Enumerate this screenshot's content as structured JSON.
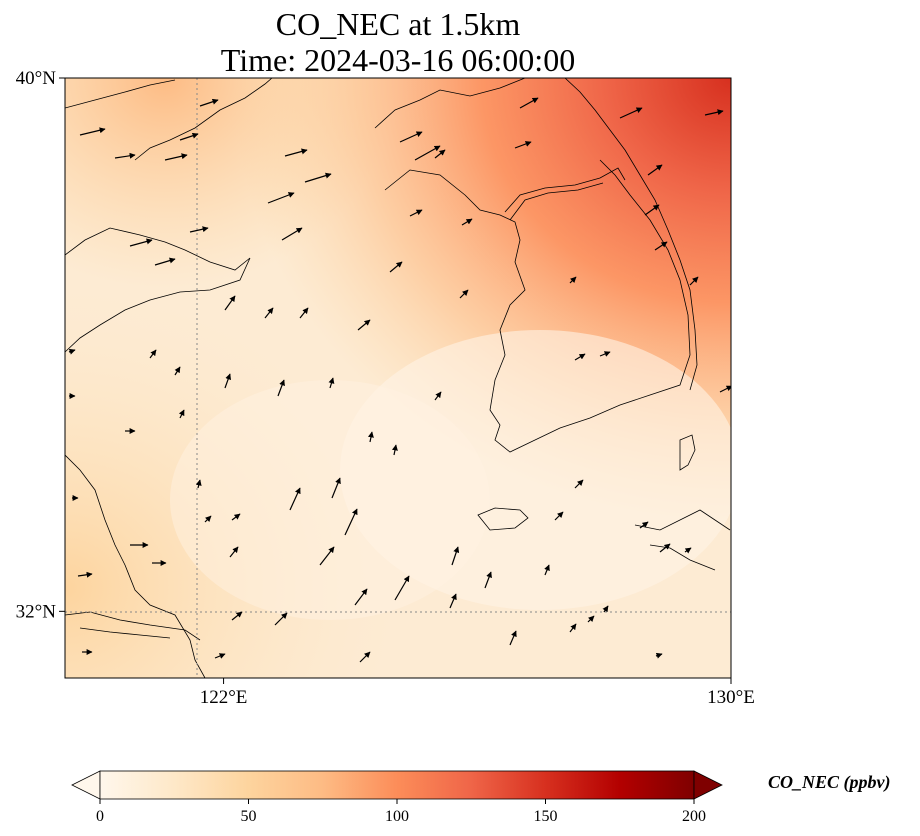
{
  "title": {
    "line1": "CO_NEC at 1.5km",
    "line2": "Time: 2024-03-16 06:00:00"
  },
  "map": {
    "lon_range": [
      119.5,
      130
    ],
    "lat_range": [
      31,
      40
    ],
    "lat_ticks": [
      {
        "value": 40,
        "label": "40°N"
      },
      {
        "value": 32,
        "label": "32°N"
      }
    ],
    "lon_ticks": [
      {
        "value": 122,
        "label": "122°E"
      },
      {
        "value": 130,
        "label": "130°E"
      }
    ],
    "gridlines": {
      "lat": 32,
      "lon": 122,
      "style": "dotted"
    },
    "field": "CO_NEC concentration, orange-red colormap, higher values toward north-east (Korean peninsula region)",
    "wind_vectors": "black arrows, mostly pointing north-east"
  },
  "colorbar": {
    "label": "CO_NEC (ppbv)",
    "min": 0,
    "max": 200,
    "extend": "both",
    "ticks": [
      {
        "value": 0,
        "label": "0"
      },
      {
        "value": 50,
        "label": "50"
      },
      {
        "value": 100,
        "label": "100"
      },
      {
        "value": 150,
        "label": "150"
      },
      {
        "value": 200,
        "label": "200"
      }
    ],
    "colors": [
      "#fff7ec",
      "#fee8c8",
      "#fdd49e",
      "#fdbb84",
      "#fc8d59",
      "#ef6548",
      "#d7301f",
      "#b30000",
      "#7f0000"
    ]
  },
  "colors": {
    "coast": "#000000",
    "arrow": "#000000",
    "grid": "#888888"
  }
}
